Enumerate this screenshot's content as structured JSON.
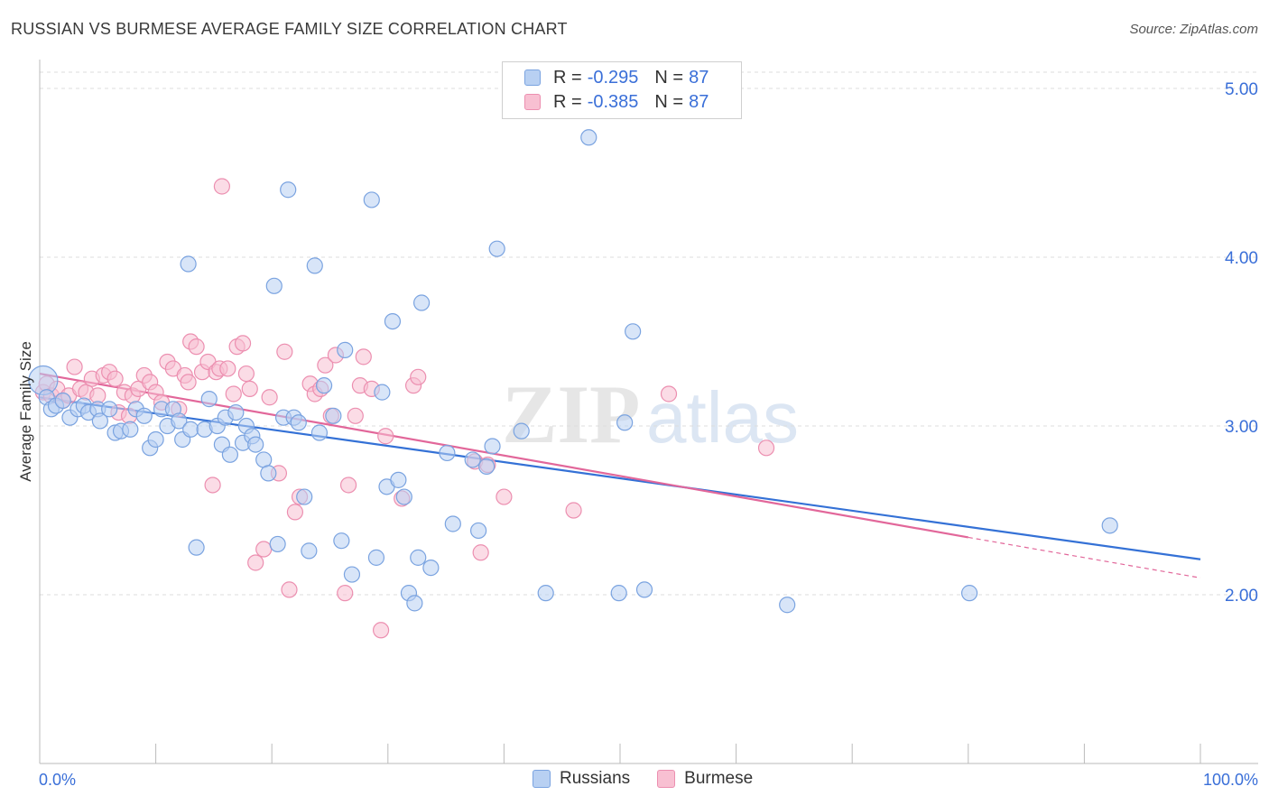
{
  "title": "RUSSIAN VS BURMESE AVERAGE FAMILY SIZE CORRELATION CHART",
  "source": "Source: ZipAtlas.com",
  "watermark": {
    "zip": "ZIP",
    "atlas": "atlas"
  },
  "legend": {
    "rows": [
      {
        "r_label": "R =",
        "r_value": "-0.295",
        "n_label": "N =",
        "n_value": "87"
      },
      {
        "r_label": "R =",
        "r_value": "-0.385",
        "n_label": "N =",
        "n_value": "87"
      }
    ]
  },
  "bottom_legend": {
    "russians": "Russians",
    "burmese": "Burmese"
  },
  "colors": {
    "russians_fill": "#b8d0f2",
    "russians_stroke": "#7aa3e0",
    "russians_line": "#3471d6",
    "burmese_fill": "#f8c0d2",
    "burmese_stroke": "#ec8fb0",
    "burmese_line": "#e2679a",
    "axis_label": "#3a6fd8",
    "grid": "#dddddd"
  },
  "chart_data": {
    "type": "scatter",
    "title": "RUSSIAN VS BURMESE AVERAGE FAMILY SIZE CORRELATION CHART",
    "xlabel": "",
    "ylabel": "Average Family Size",
    "xlim": [
      0,
      100
    ],
    "ylim": [
      1.0,
      5.15
    ],
    "x_tick_labels": [
      "0.0%",
      "100.0%"
    ],
    "y_ticks": [
      2.0,
      3.0,
      4.0,
      5.0
    ],
    "y_tick_labels": [
      "2.00",
      "3.00",
      "4.00",
      "5.00"
    ],
    "grid": true,
    "legend_position": "top-center",
    "series": [
      {
        "name": "Russians",
        "trend": {
          "x": [
            0,
            100
          ],
          "y": [
            3.17,
            2.21
          ]
        },
        "points": [
          [
            0.3,
            3.27
          ],
          [
            0.6,
            3.17
          ],
          [
            1.0,
            3.1
          ],
          [
            1.4,
            3.12
          ],
          [
            2.0,
            3.15
          ],
          [
            2.6,
            3.05
          ],
          [
            3.3,
            3.1
          ],
          [
            3.8,
            3.12
          ],
          [
            4.2,
            3.08
          ],
          [
            5.0,
            3.1
          ],
          [
            5.2,
            3.03
          ],
          [
            6.0,
            3.1
          ],
          [
            6.5,
            2.96
          ],
          [
            7.0,
            2.97
          ],
          [
            7.8,
            2.98
          ],
          [
            8.3,
            3.1
          ],
          [
            9.0,
            3.06
          ],
          [
            9.5,
            2.87
          ],
          [
            10.0,
            2.92
          ],
          [
            10.5,
            3.1
          ],
          [
            11.0,
            3.0
          ],
          [
            11.5,
            3.1
          ],
          [
            12.0,
            3.03
          ],
          [
            12.3,
            2.92
          ],
          [
            12.8,
            3.96
          ],
          [
            13.0,
            2.98
          ],
          [
            13.5,
            2.28
          ],
          [
            14.2,
            2.98
          ],
          [
            14.6,
            3.16
          ],
          [
            15.3,
            3.0
          ],
          [
            15.7,
            2.89
          ],
          [
            16.0,
            3.05
          ],
          [
            16.4,
            2.83
          ],
          [
            16.9,
            3.08
          ],
          [
            17.5,
            2.9
          ],
          [
            17.8,
            3.0
          ],
          [
            18.3,
            2.94
          ],
          [
            18.6,
            2.89
          ],
          [
            19.3,
            2.8
          ],
          [
            19.7,
            2.72
          ],
          [
            20.2,
            3.83
          ],
          [
            20.5,
            2.3
          ],
          [
            21.0,
            3.05
          ],
          [
            21.4,
            4.4
          ],
          [
            21.9,
            3.05
          ],
          [
            22.3,
            3.02
          ],
          [
            22.8,
            2.58
          ],
          [
            23.2,
            2.26
          ],
          [
            23.7,
            3.95
          ],
          [
            24.1,
            2.96
          ],
          [
            24.5,
            3.24
          ],
          [
            25.3,
            3.06
          ],
          [
            26.0,
            2.32
          ],
          [
            26.3,
            3.45
          ],
          [
            26.9,
            2.12
          ],
          [
            28.6,
            4.34
          ],
          [
            29.0,
            2.22
          ],
          [
            29.5,
            3.2
          ],
          [
            29.9,
            2.64
          ],
          [
            30.4,
            3.62
          ],
          [
            30.9,
            2.68
          ],
          [
            31.4,
            2.58
          ],
          [
            31.8,
            2.01
          ],
          [
            32.3,
            1.95
          ],
          [
            32.6,
            2.22
          ],
          [
            32.9,
            3.73
          ],
          [
            33.7,
            2.16
          ],
          [
            35.1,
            2.84
          ],
          [
            35.6,
            2.42
          ],
          [
            37.3,
            2.8
          ],
          [
            37.8,
            2.38
          ],
          [
            38.5,
            2.76
          ],
          [
            39.0,
            2.88
          ],
          [
            39.4,
            4.05
          ],
          [
            41.5,
            2.97
          ],
          [
            43.6,
            2.01
          ],
          [
            47.3,
            4.71
          ],
          [
            49.9,
            2.01
          ],
          [
            50.4,
            3.02
          ],
          [
            51.1,
            3.56
          ],
          [
            52.1,
            2.03
          ],
          [
            64.4,
            1.94
          ],
          [
            80.1,
            2.01
          ],
          [
            92.2,
            2.41
          ]
        ]
      },
      {
        "name": "Burmese",
        "trend": {
          "x": [
            0,
            80
          ],
          "y": [
            3.31,
            2.34
          ]
        },
        "trend_dashed": {
          "x": [
            80,
            100
          ],
          "y": [
            2.34,
            2.1
          ]
        },
        "points": [
          [
            0.3,
            3.2
          ],
          [
            0.6,
            3.25
          ],
          [
            1.0,
            3.18
          ],
          [
            1.5,
            3.22
          ],
          [
            2.0,
            3.15
          ],
          [
            2.5,
            3.18
          ],
          [
            3.0,
            3.35
          ],
          [
            3.5,
            3.22
          ],
          [
            4.0,
            3.2
          ],
          [
            4.5,
            3.28
          ],
          [
            5.0,
            3.18
          ],
          [
            5.5,
            3.3
          ],
          [
            6.0,
            3.32
          ],
          [
            6.5,
            3.28
          ],
          [
            6.8,
            3.08
          ],
          [
            7.3,
            3.2
          ],
          [
            7.7,
            3.06
          ],
          [
            8.0,
            3.18
          ],
          [
            8.5,
            3.22
          ],
          [
            9.0,
            3.3
          ],
          [
            9.5,
            3.26
          ],
          [
            10.0,
            3.2
          ],
          [
            10.5,
            3.14
          ],
          [
            11.0,
            3.38
          ],
          [
            11.5,
            3.34
          ],
          [
            12.0,
            3.1
          ],
          [
            12.5,
            3.3
          ],
          [
            12.8,
            3.26
          ],
          [
            13.0,
            3.5
          ],
          [
            13.5,
            3.47
          ],
          [
            14.0,
            3.32
          ],
          [
            14.5,
            3.38
          ],
          [
            14.9,
            2.65
          ],
          [
            15.2,
            3.32
          ],
          [
            15.5,
            3.34
          ],
          [
            15.7,
            4.42
          ],
          [
            16.2,
            3.34
          ],
          [
            16.7,
            3.19
          ],
          [
            17.0,
            3.47
          ],
          [
            17.5,
            3.49
          ],
          [
            17.8,
            3.31
          ],
          [
            18.1,
            3.22
          ],
          [
            18.6,
            2.19
          ],
          [
            19.3,
            2.27
          ],
          [
            19.8,
            3.17
          ],
          [
            20.6,
            2.72
          ],
          [
            21.1,
            3.44
          ],
          [
            21.5,
            2.03
          ],
          [
            22.0,
            2.49
          ],
          [
            22.4,
            2.58
          ],
          [
            23.3,
            3.25
          ],
          [
            23.7,
            3.19
          ],
          [
            24.2,
            3.22
          ],
          [
            24.6,
            3.36
          ],
          [
            25.1,
            3.06
          ],
          [
            25.5,
            3.42
          ],
          [
            26.3,
            2.01
          ],
          [
            26.6,
            2.65
          ],
          [
            27.2,
            3.06
          ],
          [
            27.6,
            3.24
          ],
          [
            27.9,
            3.41
          ],
          [
            28.6,
            3.22
          ],
          [
            29.4,
            1.79
          ],
          [
            29.8,
            2.94
          ],
          [
            31.2,
            2.57
          ],
          [
            32.2,
            3.24
          ],
          [
            32.6,
            3.29
          ],
          [
            37.5,
            2.79
          ],
          [
            38.0,
            2.25
          ],
          [
            38.6,
            2.77
          ],
          [
            40.0,
            2.58
          ],
          [
            46.0,
            2.5
          ],
          [
            54.2,
            3.19
          ],
          [
            62.6,
            2.87
          ]
        ]
      }
    ]
  }
}
